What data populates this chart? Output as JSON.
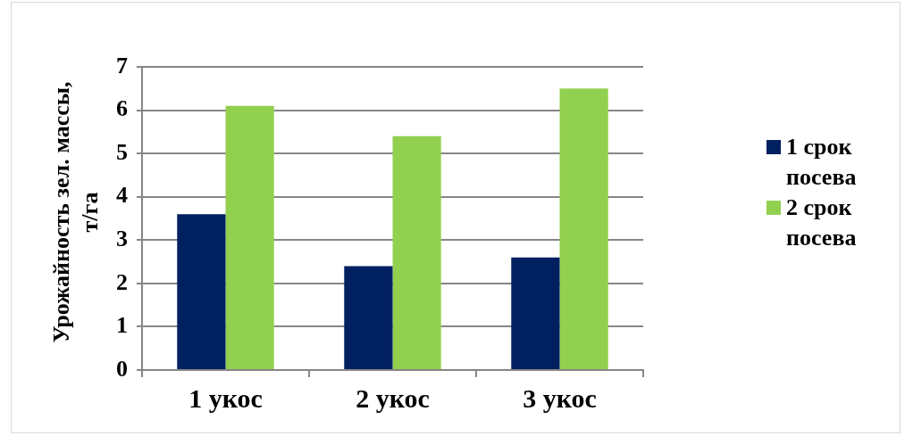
{
  "chart_data": {
    "type": "bar",
    "ylabel": "Урожайность зел. массы, т/га",
    "categories": [
      "1 укос",
      "2 укос",
      "3 укос"
    ],
    "series": [
      {
        "name": "1 срок посева",
        "color": "#002060",
        "values": [
          3.6,
          2.4,
          2.6
        ]
      },
      {
        "name": "2 срок посева",
        "color": "#92d050",
        "values": [
          6.1,
          5.4,
          6.5
        ]
      }
    ],
    "ylim": [
      0,
      7
    ],
    "yticks": [
      0,
      1,
      2,
      3,
      4,
      5,
      6,
      7
    ],
    "grid": "y",
    "legend": "right"
  }
}
